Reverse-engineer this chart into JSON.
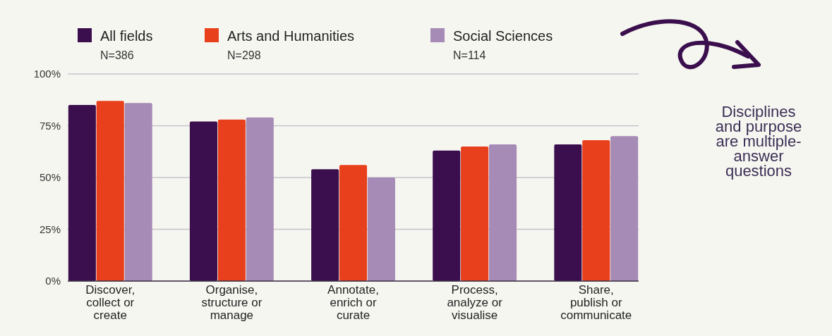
{
  "chart_data": {
    "type": "bar",
    "categories": [
      "Discover, collect or create",
      "Organise, structure or manage",
      "Annotate, enrich or curate",
      "Process, analyze or visualise",
      "Share, publish or communicate"
    ],
    "series": [
      {
        "name": "All fields",
        "color": "#3b0f4d",
        "values": [
          85,
          77,
          54,
          63,
          66
        ]
      },
      {
        "name": "Arts and Humanities",
        "color": "#e8401c",
        "values": [
          87,
          78,
          56,
          65,
          68
        ]
      },
      {
        "name": "Social Sciences",
        "color": "#a58bb5",
        "values": [
          86,
          79,
          50,
          66,
          70
        ]
      }
    ],
    "ylim": [
      0,
      100
    ],
    "yticks": [
      {
        "value": 0,
        "label": "0%"
      },
      {
        "value": 25,
        "label": "25%"
      },
      {
        "value": 50,
        "label": "50%"
      },
      {
        "value": 75,
        "label": "75%"
      },
      {
        "value": 100,
        "label": "100%"
      }
    ],
    "grid": "y",
    "legend": "top left",
    "annotations": [
      "N=386",
      "N=298",
      "N=114",
      "Disciplines and purpose are multiple-answer questions"
    ]
  }
}
